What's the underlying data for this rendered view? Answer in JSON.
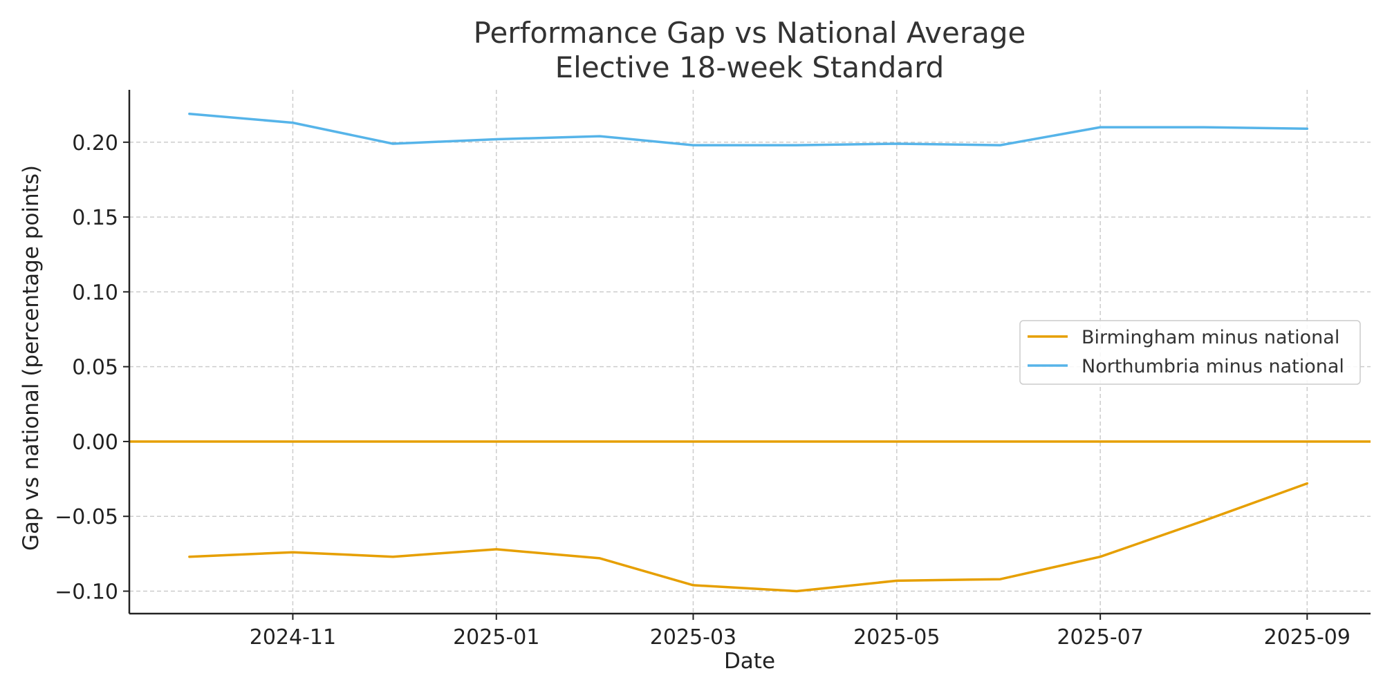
{
  "chart_data": {
    "type": "line",
    "title": "Performance Gap vs National Average",
    "subtitle": "Elective 18-week Standard",
    "xlabel": "Date",
    "ylabel": "Gap vs national (percentage points)",
    "x": [
      "2024-10-01",
      "2024-11-01",
      "2024-12-01",
      "2025-01-01",
      "2025-02-01",
      "2025-03-01",
      "2025-04-01",
      "2025-05-01",
      "2025-06-01",
      "2025-07-01",
      "2025-08-01",
      "2025-09-01"
    ],
    "xlim": [
      "2024-09-13",
      "2025-09-20"
    ],
    "ylim": [
      -0.115,
      0.235
    ],
    "x_ticks": [
      "2024-11",
      "2025-01",
      "2025-03",
      "2025-05",
      "2025-07",
      "2025-09"
    ],
    "y_ticks": [
      0.2,
      0.15,
      0.1,
      0.05,
      0.0,
      -0.05,
      -0.1
    ],
    "y_tick_labels": [
      "0.20",
      "0.15",
      "0.10",
      "0.05",
      "0.00",
      "−0.05",
      "−0.10"
    ],
    "grid": true,
    "legend_position": "center-right",
    "series": [
      {
        "name": "Birmingham minus national",
        "color": "#E69F00",
        "values": [
          -0.077,
          -0.074,
          -0.077,
          -0.072,
          -0.078,
          -0.096,
          -0.1,
          -0.093,
          -0.092,
          -0.077,
          -0.053,
          -0.028
        ]
      },
      {
        "name": "Northumbria minus national",
        "color": "#56B4E9",
        "values": [
          0.219,
          0.213,
          0.199,
          0.202,
          0.204,
          0.198,
          0.198,
          0.199,
          0.198,
          0.21,
          0.21,
          0.209
        ]
      }
    ],
    "reference_line": {
      "y": 0.0,
      "color": "#E69F00"
    }
  }
}
